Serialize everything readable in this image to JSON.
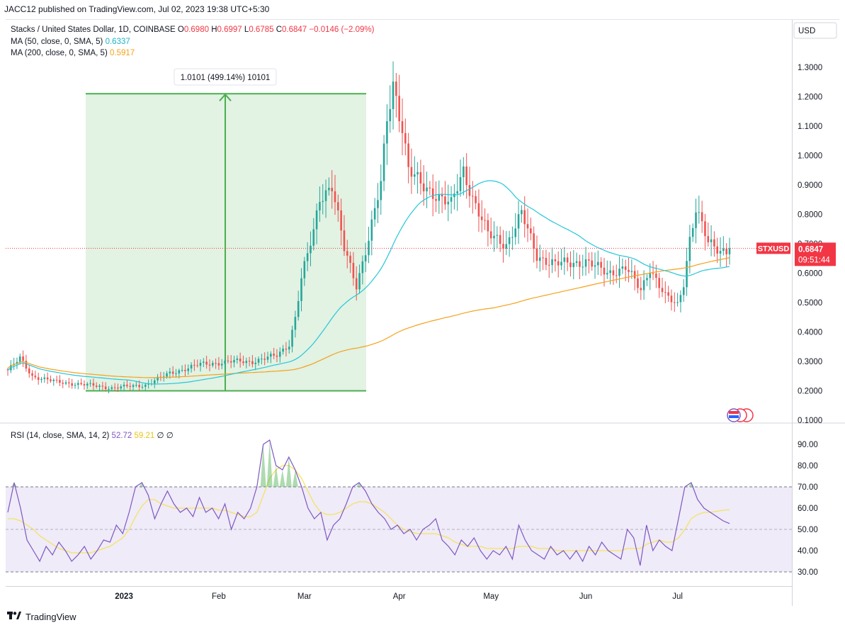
{
  "header": {
    "published": "JACC12 published on TradingView.com, Jul 02, 2023 19:38 UTC+5:30"
  },
  "legend": {
    "symbol": "Stacks / United States Dollar, 1D, COINBASE",
    "o_label": "O",
    "o": "0.6980",
    "h_label": "H",
    "h": "0.6997",
    "l_label": "L",
    "l": "0.6785",
    "c_label": "C",
    "c": "0.6847",
    "change": "−0.0146 (−2.09%)",
    "ma50_label": "MA (50, close, 0, SMA, 5)",
    "ma50_value": "0.6337",
    "ma200_label": "MA (200, close, 0, SMA, 5)",
    "ma200_value": "0.5917",
    "rsi_label": "RSI (14, close, SMA, 14, 2)",
    "rsi_value": "52.72",
    "rsi_ma_value": "59.21",
    "rsi_extra": "∅ ∅"
  },
  "currency": "USD",
  "price_tag": {
    "symbol": "STXUSD",
    "price": "0.6847",
    "countdown": "09:51:44"
  },
  "measure_label": "1.0101 (499.14%) 10101",
  "brand": "TradingView",
  "colors": {
    "up": "#26a69a",
    "down": "#ef5350",
    "ma50": "#26c6da",
    "ma200": "#f5a11a",
    "rsi": "#7e57c2",
    "rsi_ma": "#f5e25a",
    "measure": "#4caf50",
    "price_tag": "#f23645"
  },
  "chart_data": [
    {
      "type": "candlestick",
      "title": "Stacks / United States Dollar, 1D, COINBASE",
      "x_ticks": [
        "2023",
        "Feb",
        "Mar",
        "Apr",
        "May",
        "Jun",
        "Jul"
      ],
      "y_ticks": [
        "0.1000",
        "0.2000",
        "0.3000",
        "0.4000",
        "0.5000",
        "0.6000",
        "0.7000",
        "0.8000",
        "0.9000",
        "1.0000",
        "1.1000",
        "1.2000",
        "1.3000"
      ],
      "ylim": [
        0.1,
        1.35
      ],
      "close_anchors": [
        [
          "2022-11-24",
          0.27
        ],
        [
          "2022-11-28",
          0.31
        ],
        [
          "2022-12-02",
          0.25
        ],
        [
          "2022-12-10",
          0.23
        ],
        [
          "2022-12-20",
          0.22
        ],
        [
          "2022-12-28",
          0.21
        ],
        [
          "2023-01-08",
          0.22
        ],
        [
          "2023-01-16",
          0.26
        ],
        [
          "2023-01-26",
          0.29
        ],
        [
          "2023-02-06",
          0.3
        ],
        [
          "2023-02-12",
          0.3
        ],
        [
          "2023-02-20",
          0.32
        ],
        [
          "2023-02-24",
          0.36
        ],
        [
          "2023-02-26",
          0.45
        ],
        [
          "2023-02-28",
          0.58
        ],
        [
          "2023-03-04",
          0.74
        ],
        [
          "2023-03-06",
          0.86
        ],
        [
          "2023-03-10",
          0.9
        ],
        [
          "2023-03-14",
          0.68
        ],
        [
          "2023-03-18",
          0.56
        ],
        [
          "2023-03-22",
          0.72
        ],
        [
          "2023-03-26",
          0.9
        ],
        [
          "2023-03-28",
          1.12
        ],
        [
          "2023-03-30",
          1.25
        ],
        [
          "2023-04-02",
          1.1
        ],
        [
          "2023-04-04",
          0.95
        ],
        [
          "2023-04-08",
          0.9
        ],
        [
          "2023-04-13",
          0.87
        ],
        [
          "2023-04-18",
          0.83
        ],
        [
          "2023-04-22",
          0.95
        ],
        [
          "2023-04-25",
          0.86
        ],
        [
          "2023-04-30",
          0.73
        ],
        [
          "2023-05-06",
          0.7
        ],
        [
          "2023-05-11",
          0.8
        ],
        [
          "2023-05-16",
          0.66
        ],
        [
          "2023-05-22",
          0.63
        ],
        [
          "2023-06-01",
          0.64
        ],
        [
          "2023-06-08",
          0.6
        ],
        [
          "2023-06-14",
          0.62
        ],
        [
          "2023-06-19",
          0.54
        ],
        [
          "2023-06-22",
          0.62
        ],
        [
          "2023-06-27",
          0.52
        ],
        [
          "2023-07-01",
          0.49
        ],
        [
          "2023-07-03",
          0.57
        ],
        [
          "2023-07-05",
          0.72
        ],
        [
          "2023-07-07",
          0.82
        ],
        [
          "2023-07-11",
          0.7
        ],
        [
          "2023-07-15",
          0.68
        ],
        [
          "2023-07-18",
          0.68
        ]
      ],
      "ma50": {
        "name": "MA (50, close, 0, SMA, 5)",
        "last": 0.6337
      },
      "ma200": {
        "name": "MA (200, close, 0, SMA, 5)",
        "last": 0.5917
      },
      "last_price": 0.6847,
      "measure": {
        "from": 0.2,
        "to": 1.2101,
        "label": "1.0101 (499.14%) 10101"
      }
    },
    {
      "type": "line",
      "title": "RSI (14, close, SMA, 14, 2)",
      "y_ticks": [
        "30.00",
        "40.00",
        "50.00",
        "60.00",
        "70.00",
        "80.00",
        "90.00"
      ],
      "ylim": [
        27,
        95
      ],
      "bands": [
        30,
        50,
        70
      ],
      "series": [
        {
          "name": "RSI",
          "values": [
            58,
            72,
            60,
            45,
            40,
            35,
            42,
            38,
            44,
            40,
            35,
            38,
            42,
            36,
            40,
            45,
            44,
            52,
            48,
            58,
            70,
            72,
            66,
            55,
            62,
            68,
            62,
            58,
            60,
            56,
            65,
            58,
            60,
            55,
            62,
            50,
            58,
            55,
            60,
            70,
            90,
            92,
            80,
            78,
            84,
            78,
            70,
            60,
            55,
            58,
            45,
            52,
            55,
            62,
            70,
            72,
            68,
            62,
            58,
            55,
            50,
            52,
            48,
            50,
            45,
            50,
            52,
            55,
            45,
            42,
            38,
            45,
            42,
            46,
            40,
            36,
            40,
            38,
            42,
            36,
            52,
            45,
            40,
            38,
            36,
            42,
            38,
            40,
            36,
            40,
            35,
            42,
            38,
            44,
            40,
            38,
            36,
            50,
            46,
            33,
            52,
            40,
            45,
            42,
            40,
            55,
            70,
            72,
            64,
            60,
            58,
            56,
            54,
            52.72
          ]
        },
        {
          "name": "RSI MA",
          "values": [
            55,
            55,
            54,
            52,
            50,
            47,
            45,
            43,
            41,
            40,
            39,
            39,
            39,
            39,
            40,
            41,
            42,
            44,
            46,
            50,
            56,
            61,
            64,
            64,
            62,
            61,
            60,
            60,
            60,
            60,
            60,
            60,
            60,
            59,
            59,
            58,
            57,
            56,
            56,
            58,
            66,
            74,
            78,
            80,
            80,
            78,
            74,
            68,
            62,
            58,
            57,
            57,
            58,
            60,
            62,
            63,
            63,
            62,
            60,
            58,
            55,
            52,
            50,
            49,
            48,
            48,
            48,
            48,
            47,
            46,
            44,
            43,
            42,
            42,
            42,
            41,
            41,
            41,
            41,
            41,
            42,
            42,
            42,
            41,
            41,
            41,
            40,
            40,
            40,
            40,
            40,
            40,
            40,
            40,
            40,
            40,
            40,
            41,
            41,
            41,
            43,
            44,
            45,
            44,
            44,
            46,
            50,
            55,
            57,
            58,
            58,
            58.5,
            59,
            59.21
          ]
        }
      ]
    }
  ]
}
